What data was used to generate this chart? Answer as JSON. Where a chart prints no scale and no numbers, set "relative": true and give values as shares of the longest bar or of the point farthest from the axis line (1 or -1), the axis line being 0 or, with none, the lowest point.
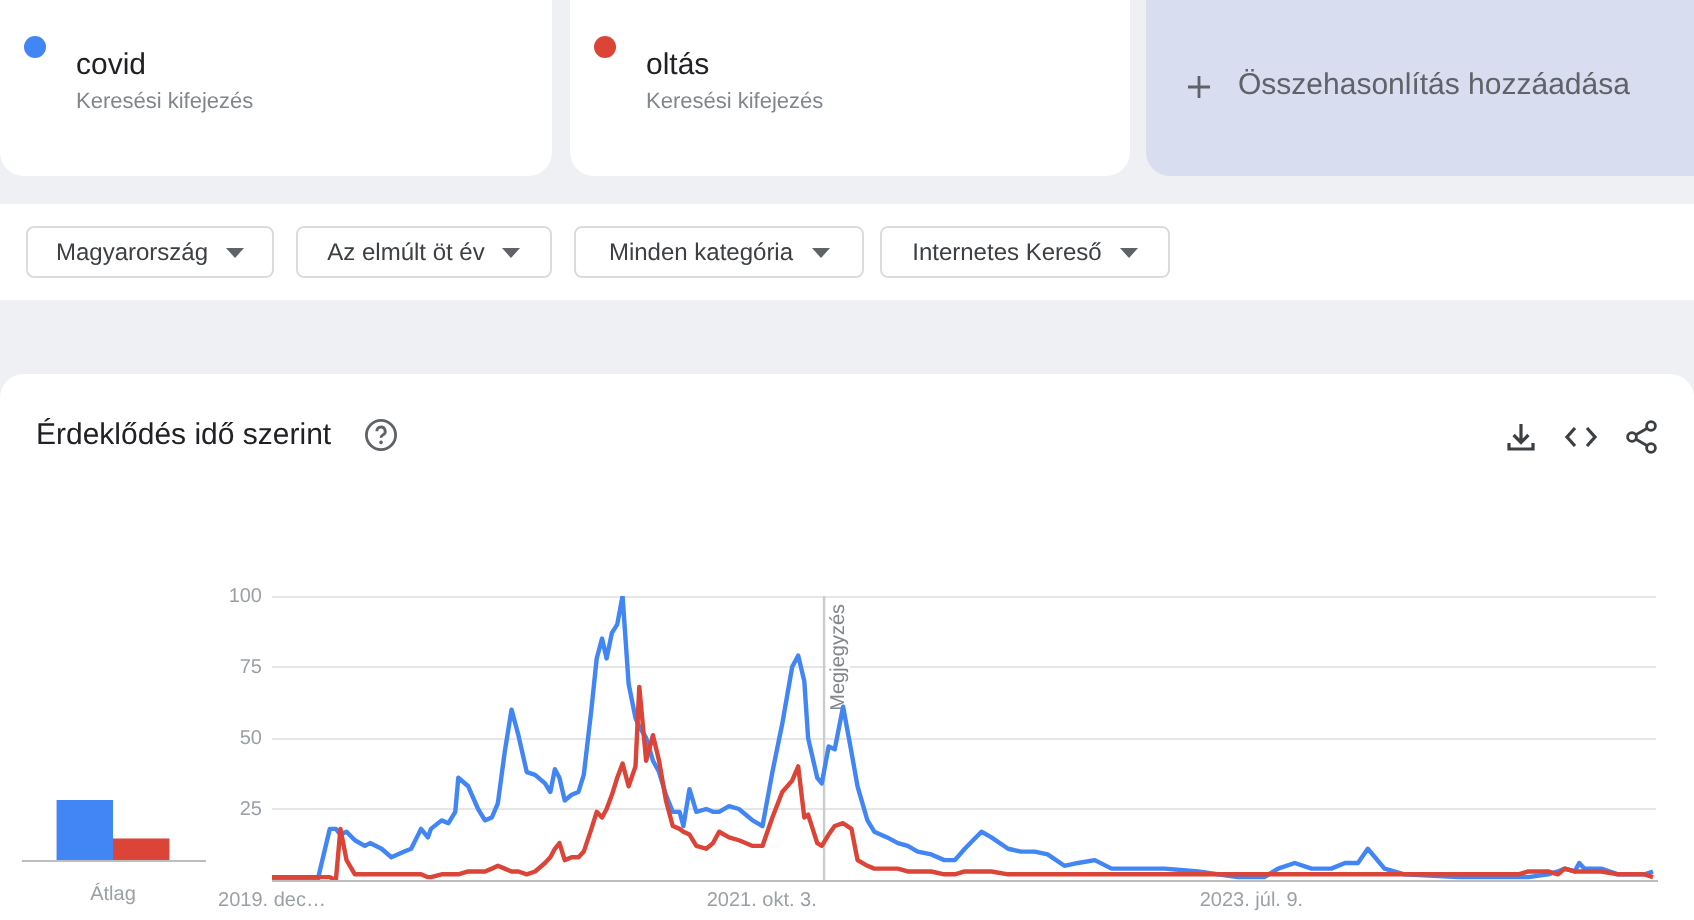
{
  "chart_data": [
    {
      "type": "line",
      "title": "Érdeklődés idő szerint",
      "legend": "top",
      "grid": "y",
      "annotations": [
        "Keresési kifejezés",
        "Keresési kifejezés",
        "Összehasonlítás hozzáadása",
        "Magyarország",
        "Az elmúlt öt év",
        "Minden kategória",
        "Internetes Kereső"
      ],
      "x": [
        "2019-12-29",
        "2020-02-27",
        "2020-03-14",
        "2020-03-22",
        "2020-03-28",
        "2020-04-05",
        "2020-04-16",
        "2020-04-29",
        "2020-05-06",
        "2020-05-21",
        "2020-06-03",
        "2020-06-20",
        "2020-06-29",
        "2020-07-12",
        "2020-07-21",
        "2020-07-25",
        "2020-08-08",
        "2020-08-17",
        "2020-08-26",
        "2020-08-30",
        "2020-09-12",
        "2020-09-25",
        "2020-10-04",
        "2020-10-13",
        "2020-10-21",
        "2020-10-30",
        "2020-11-08",
        "2020-11-17",
        "2020-11-28",
        "2020-12-09",
        "2020-12-22",
        "2020-12-29",
        "2021-01-04",
        "2021-01-10",
        "2021-01-17",
        "2021-01-26",
        "2021-02-04",
        "2021-02-11",
        "2021-02-21",
        "2021-02-28",
        "2021-03-07",
        "2021-03-13",
        "2021-03-20",
        "2021-03-27",
        "2021-04-03",
        "2021-04-11",
        "2021-04-20",
        "2021-04-25",
        "2021-05-04",
        "2021-05-13",
        "2021-05-21",
        "2021-05-30",
        "2021-06-08",
        "2021-06-17",
        "2021-06-22",
        "2021-06-30",
        "2021-07-09",
        "2021-07-22",
        "2021-07-31",
        "2021-08-08",
        "2021-08-21",
        "2021-09-03",
        "2021-09-21",
        "2021-10-04",
        "2021-10-17",
        "2021-10-30",
        "2021-11-12",
        "2021-11-20",
        "2021-11-28",
        "2021-12-03",
        "2021-12-15",
        "2021-12-21",
        "2021-12-30",
        "2022-01-07",
        "2022-01-18",
        "2022-01-29",
        "2022-02-06",
        "2022-02-19",
        "2022-02-28",
        "2022-03-17",
        "2022-03-31",
        "2022-04-13",
        "2022-04-26",
        "2022-05-14",
        "2022-05-31",
        "2022-06-14",
        "2022-06-27",
        "2022-07-19",
        "2022-08-01",
        "2022-08-23",
        "2022-09-09",
        "2022-09-27",
        "2022-10-14",
        "2022-11-05",
        "2022-11-23",
        "2022-12-15",
        "2023-01-06",
        "2023-02-19",
        "2023-03-17",
        "2023-04-30",
        "2023-06-21",
        "2023-07-26",
        "2023-08-13",
        "2023-09-04",
        "2023-09-26",
        "2023-10-22",
        "2023-11-09",
        "2023-11-26",
        "2023-12-09",
        "2023-12-31",
        "2024-01-26",
        "2024-04-06",
        "2024-06-24",
        "2024-07-07",
        "2024-08-02",
        "2024-08-15",
        "2024-08-24",
        "2024-09-06",
        "2024-09-12",
        "2024-09-19",
        "2024-10-11",
        "2024-11-02",
        "2024-12-07",
        "2024-12-18"
      ],
      "series": [
        {
          "name": "covid",
          "color": "#4285f4",
          "values": [
            0,
            0,
            18,
            18,
            16,
            17,
            14,
            12,
            13,
            11,
            8,
            10,
            11,
            18,
            15,
            18,
            21,
            20,
            24,
            36,
            33,
            25,
            21,
            22,
            27,
            45,
            60,
            51,
            38,
            37,
            34,
            31,
            39,
            36,
            28,
            30,
            31,
            37,
            60,
            78,
            85,
            78,
            87,
            90,
            100,
            69,
            57,
            54,
            50,
            42,
            38,
            30,
            24,
            24,
            19,
            32,
            24,
            25,
            24,
            24,
            26,
            25,
            21,
            19,
            38,
            55,
            75,
            79,
            70,
            50,
            36,
            34,
            47,
            46,
            61,
            45,
            33,
            21,
            17,
            15,
            13,
            12,
            10,
            9,
            7,
            7,
            11,
            17,
            15,
            11,
            10,
            10,
            9,
            5,
            6,
            7,
            4,
            4,
            4,
            3,
            1,
            1,
            4,
            6,
            4,
            4,
            6,
            6,
            11,
            4,
            2,
            1,
            1,
            1,
            2,
            3,
            4,
            3,
            6,
            4,
            4,
            2,
            2,
            3
          ]
        },
        {
          "name": "oltás",
          "color": "#db4437",
          "values": [
            1,
            1,
            1,
            0,
            18,
            7,
            2,
            2,
            2,
            2,
            2,
            2,
            2,
            2,
            1,
            1,
            2,
            2,
            2,
            2,
            3,
            3,
            3,
            4,
            5,
            4,
            3,
            3,
            2,
            3,
            6,
            8,
            11,
            13,
            7,
            8,
            8,
            10,
            18,
            24,
            22,
            25,
            30,
            36,
            41,
            33,
            40,
            68,
            42,
            51,
            42,
            28,
            19,
            18,
            17,
            16,
            12,
            11,
            13,
            17,
            15,
            14,
            12,
            12,
            22,
            31,
            35,
            40,
            22,
            23,
            13,
            12,
            16,
            19,
            20,
            18,
            7,
            5,
            4,
            4,
            4,
            3,
            3,
            3,
            2,
            2,
            3,
            3,
            3,
            2,
            2,
            2,
            2,
            2,
            2,
            2,
            2,
            2,
            2,
            2,
            2,
            2,
            2,
            2,
            2,
            2,
            2,
            2,
            2,
            2,
            2,
            2,
            2,
            3,
            3,
            2,
            4,
            3,
            3,
            3,
            3,
            2,
            2,
            1
          ]
        }
      ],
      "xlim": [
        "2019-12-29",
        "2024-12-22"
      ],
      "xticks": [
        {
          "value": "2019-12-29",
          "label": "2019. dec…"
        },
        {
          "value": "2021-10-03",
          "label": "2021. okt. 3."
        },
        {
          "value": "2023-07-09",
          "label": "2023. júl. 9."
        }
      ],
      "ylim": [
        0,
        100
      ],
      "yticks": [
        25,
        50,
        75,
        100
      ],
      "ref_lines": [
        {
          "axis": "x",
          "value": "2021-12-24",
          "label": "Megjegyzés",
          "color": "#cccccc"
        }
      ]
    },
    {
      "type": "bar",
      "relative": true,
      "categories": [
        "Átlag"
      ],
      "series": [
        {
          "color": "#4285f4",
          "values": [
            1
          ]
        },
        {
          "color": "#db4437",
          "values": [
            0.36
          ]
        }
      ]
    }
  ]
}
